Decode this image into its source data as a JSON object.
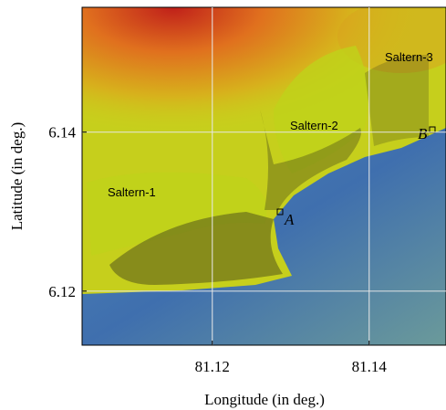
{
  "axes": {
    "xlabel": "Longitude (in deg.)",
    "ylabel": "Latitude (in deg.)",
    "xlim": [
      81.1034,
      81.1498
    ],
    "ylim": [
      6.1132,
      6.1557
    ],
    "xticks": [
      81.12,
      81.14
    ],
    "yticks": [
      6.12,
      6.14
    ],
    "grid": true
  },
  "labels": [
    "Saltern-1",
    "Saltern-2",
    "Saltern-3"
  ],
  "points": [
    "A",
    "B"
  ]
}
